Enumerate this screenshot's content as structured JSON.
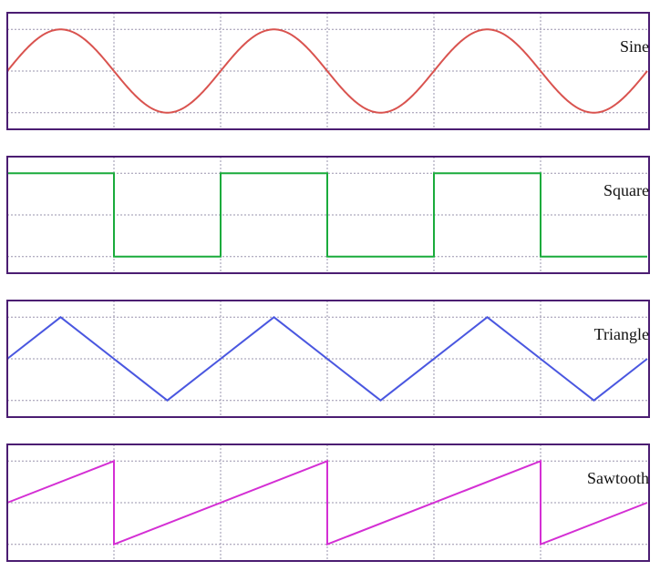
{
  "colors": {
    "frame": "#4b1d72",
    "grid": "#9a94ad",
    "background": "#ffffff"
  },
  "chart_data": [
    {
      "type": "line",
      "name": "sine",
      "label": "Sine",
      "color": "#d9534f",
      "x_range": [
        0,
        6
      ],
      "y_range": [
        -1.4,
        1.4
      ],
      "grid": true,
      "points": [
        [
          0,
          0
        ],
        [
          0.5,
          1
        ],
        [
          1,
          0
        ],
        [
          1.5,
          -1
        ],
        [
          2,
          0
        ],
        [
          2.5,
          1
        ],
        [
          3,
          0
        ],
        [
          3.5,
          -1
        ],
        [
          4,
          0
        ],
        [
          4.5,
          1
        ],
        [
          5,
          0
        ],
        [
          5.5,
          -1
        ],
        [
          6,
          0
        ]
      ]
    },
    {
      "type": "line",
      "name": "square",
      "label": "Square",
      "color": "#1aab3c",
      "x_range": [
        0,
        6
      ],
      "y_range": [
        -1.4,
        1.4
      ],
      "grid": true,
      "points": [
        [
          0,
          1
        ],
        [
          1,
          1
        ],
        [
          1,
          -1
        ],
        [
          2,
          -1
        ],
        [
          2,
          1
        ],
        [
          3,
          1
        ],
        [
          3,
          -1
        ],
        [
          4,
          -1
        ],
        [
          4,
          1
        ],
        [
          5,
          1
        ],
        [
          5,
          -1
        ],
        [
          6,
          -1
        ]
      ]
    },
    {
      "type": "line",
      "name": "triangle",
      "label": "Triangle",
      "color": "#4a57e0",
      "x_range": [
        0,
        6
      ],
      "y_range": [
        -1.4,
        1.4
      ],
      "grid": true,
      "points": [
        [
          0,
          0
        ],
        [
          0.5,
          1
        ],
        [
          1.5,
          -1
        ],
        [
          2.5,
          1
        ],
        [
          3.5,
          -1
        ],
        [
          4.5,
          1
        ],
        [
          5.5,
          -1
        ],
        [
          6,
          0
        ]
      ]
    },
    {
      "type": "line",
      "name": "sawtooth",
      "label": "Sawtooth",
      "color": "#d42fd4",
      "x_range": [
        0,
        6
      ],
      "y_range": [
        -1.4,
        1.4
      ],
      "grid": true,
      "points": [
        [
          0,
          0
        ],
        [
          1,
          1
        ],
        [
          1,
          -1
        ],
        [
          3,
          1
        ],
        [
          3,
          -1
        ],
        [
          5,
          1
        ],
        [
          5,
          -1
        ],
        [
          6,
          -0.0
        ]
      ]
    }
  ]
}
